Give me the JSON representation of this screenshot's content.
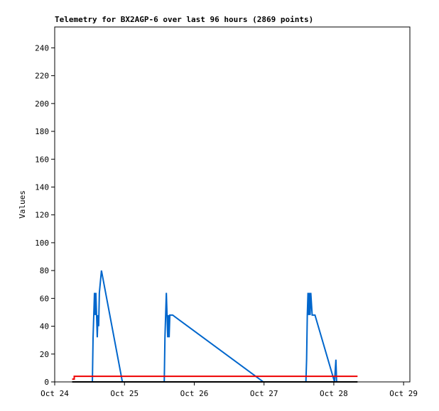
{
  "chart_data": {
    "type": "line",
    "title": "Telemetry for BX2AGP-6 over last 96 hours (2869 points)",
    "y_label": "Values",
    "xlim": [
      0,
      5.09
    ],
    "xticks": [
      {
        "value": 0,
        "label": "Oct 24"
      },
      {
        "value": 1,
        "label": "Oct 25"
      },
      {
        "value": 2,
        "label": "Oct 26"
      },
      {
        "value": 3,
        "label": "Oct 27"
      },
      {
        "value": 4,
        "label": "Oct 28"
      },
      {
        "value": 5,
        "label": "Oct 29"
      }
    ],
    "ylim": [
      0,
      255
    ],
    "yticks": [
      0,
      20,
      40,
      60,
      80,
      100,
      120,
      140,
      160,
      180,
      200,
      220,
      240
    ],
    "series": [
      {
        "color": "#0066cc",
        "x": [
          0.54,
          0.55,
          0.56,
          0.57,
          0.58,
          0.59,
          0.6,
          0.61,
          0.62,
          0.63,
          0.64,
          0.67,
          0.97,
          1.57,
          1.58,
          1.59,
          1.6,
          1.61,
          1.62,
          1.63,
          1.64,
          1.65,
          1.69,
          2.99,
          3.6,
          3.61,
          3.62,
          3.63,
          3.64,
          3.65,
          3.66,
          3.67,
          3.69,
          3.73,
          4.01,
          4.03,
          4.04
        ],
        "values": [
          0,
          32,
          48,
          64,
          48,
          64,
          48,
          32,
          48,
          40,
          64,
          80,
          0,
          0,
          32,
          48,
          64,
          48,
          32,
          48,
          32,
          48,
          48,
          0,
          0,
          16,
          48,
          64,
          48,
          64,
          48,
          64,
          48,
          48,
          0,
          16,
          0
        ]
      },
      {
        "color": "#ee0000",
        "x": [
          0.25,
          0.28,
          0.28,
          4.34
        ],
        "values": [
          2,
          2,
          4,
          4
        ]
      },
      {
        "color": "#000000",
        "x": [
          0.25,
          4.34
        ],
        "values": [
          0,
          0
        ]
      }
    ]
  }
}
